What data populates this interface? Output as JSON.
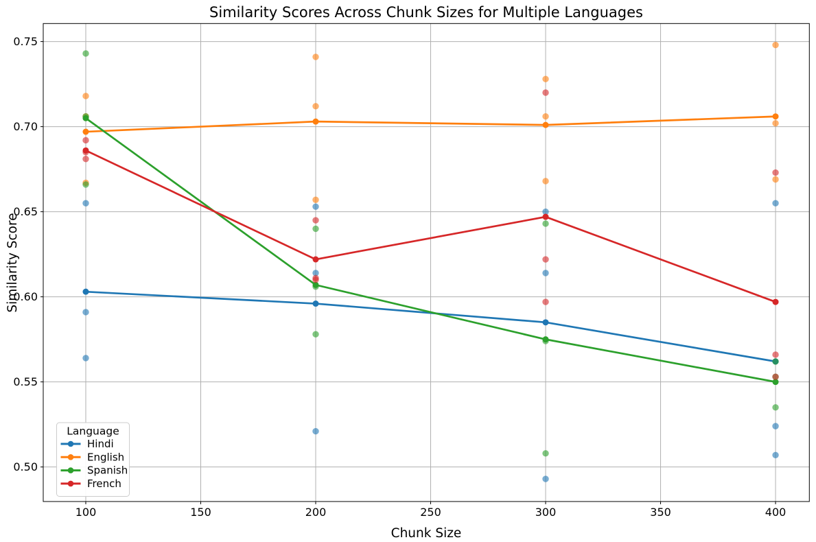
{
  "figure": {
    "background": "#ffffff",
    "frame_color": "#000000"
  },
  "chart_data": {
    "type": "line",
    "title": "Similarity Scores Across Chunk Sizes for Multiple Languages",
    "xlabel": "Chunk Size",
    "ylabel": "Similarity Score",
    "x": [
      100,
      200,
      300,
      400
    ],
    "x_tick_values": [
      100,
      150,
      200,
      250,
      300,
      350,
      400
    ],
    "x_tick_labels": [
      "100",
      "150",
      "200",
      "250",
      "300",
      "350",
      "400"
    ],
    "y_tick_values": [
      0.5,
      0.55,
      0.6,
      0.65,
      0.7,
      0.75
    ],
    "y_tick_labels": [
      "0.50",
      "0.55",
      "0.60",
      "0.65",
      "0.70",
      "0.75"
    ],
    "xlim": [
      81.5,
      414.7
    ],
    "ylim": [
      0.4797,
      0.7606
    ],
    "grid": true,
    "grid_color": "#b0b0b0",
    "scatter_alpha": 0.6,
    "legend": {
      "title": "Language",
      "position": "lower-left",
      "entries": [
        "Hindi",
        "English",
        "Spanish",
        "French"
      ]
    },
    "series": [
      {
        "name": "Hindi",
        "color": "#1f77b4",
        "means": [
          0.603,
          0.596,
          0.585,
          0.562
        ],
        "scatter": [
          [
            0.655,
            0.591,
            0.564
          ],
          [
            0.653,
            0.614,
            0.521
          ],
          [
            0.65,
            0.614,
            0.493
          ],
          [
            0.655,
            0.524,
            0.507
          ]
        ]
      },
      {
        "name": "English",
        "color": "#ff7f0e",
        "means": [
          0.697,
          0.703,
          0.701,
          0.706
        ],
        "scatter": [
          [
            0.718,
            0.706,
            0.667
          ],
          [
            0.741,
            0.712,
            0.657
          ],
          [
            0.728,
            0.706,
            0.668
          ],
          [
            0.748,
            0.702,
            0.669
          ]
        ]
      },
      {
        "name": "Spanish",
        "color": "#2ca02c",
        "means": [
          0.705,
          0.607,
          0.575,
          0.55
        ],
        "scatter": [
          [
            0.743,
            0.706,
            0.666
          ],
          [
            0.64,
            0.606,
            0.578
          ],
          [
            0.643,
            0.574,
            0.508
          ],
          [
            0.562,
            0.553,
            0.535
          ]
        ]
      },
      {
        "name": "French",
        "color": "#d62728",
        "means": [
          0.686,
          0.622,
          0.647,
          0.597
        ],
        "scatter": [
          [
            0.692,
            0.685,
            0.681
          ],
          [
            0.645,
            0.611,
            0.61
          ],
          [
            0.72,
            0.622,
            0.597
          ],
          [
            0.673,
            0.566,
            0.553
          ]
        ]
      }
    ]
  }
}
